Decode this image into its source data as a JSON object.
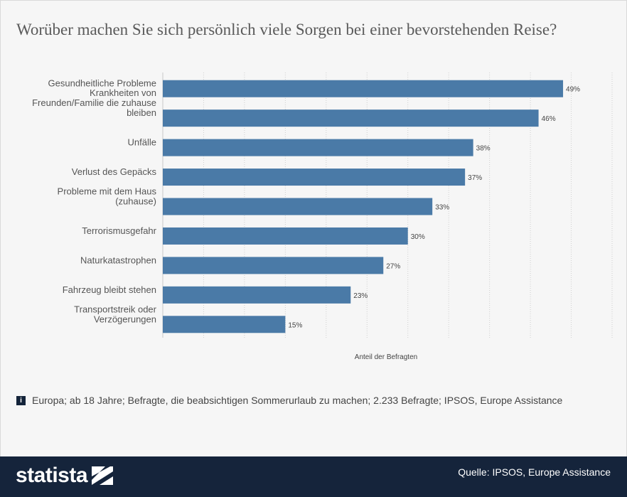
{
  "chart_title": "Worüber machen Sie sich persönlich viele Sorgen bei einer bevorstehenden Reise?",
  "chart_data": {
    "type": "bar",
    "orientation": "horizontal",
    "title": "Worüber machen Sie sich persönlich viele Sorgen bei einer bevorstehenden Reise?",
    "categories": [
      [
        "Gesundheitliche Probleme"
      ],
      [
        "Krankheiten von",
        "Freunden/Familie die zuhause",
        "bleiben"
      ],
      [
        "Unfälle"
      ],
      [
        "Verlust des Gepäcks"
      ],
      [
        "Probleme mit dem Haus",
        "(zuhause)"
      ],
      [
        "Terrorismusgefahr"
      ],
      [
        "Naturkatastrophen"
      ],
      [
        "Fahrzeug bleibt stehen"
      ],
      [
        "Transportstreik oder",
        "Verzögerungen"
      ]
    ],
    "values": [
      49,
      46,
      38,
      37,
      33,
      30,
      27,
      23,
      15
    ],
    "value_labels": [
      "49%",
      "46%",
      "38%",
      "37%",
      "33%",
      "30%",
      "27%",
      "23%",
      "15%"
    ],
    "xlabel": "Anteil der Befragten",
    "ylabel": "",
    "xlim": [
      0,
      55
    ],
    "grid": "vertical dashed",
    "bar_color": "#4a7aa7"
  },
  "footnote": {
    "icon": "info-icon",
    "icon_glyph": "i",
    "text": "Europa; ab 18 Jahre; Befragte, die beabsichtigen Sommerurlaub zu machen; 2.233 Befragte; IPSOS, Europe Assistance"
  },
  "footer": {
    "brand": "statista",
    "logo_icon": "statista-logo-icon",
    "source": "Quelle: IPSOS, Europe Assistance",
    "background": "#15243b"
  }
}
